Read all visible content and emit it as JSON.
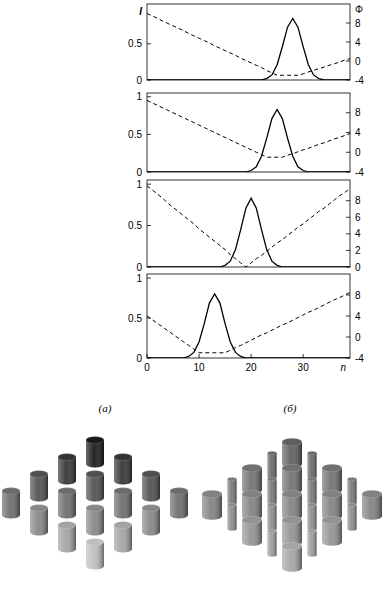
{
  "chart_data": [
    {
      "type": "line",
      "y_label": "I",
      "y2_label": "Φ",
      "x": [
        0,
        1,
        2,
        3,
        4,
        5,
        6,
        7,
        8,
        9,
        10,
        11,
        12,
        13,
        14,
        15,
        16,
        17,
        18,
        19,
        20,
        21,
        22,
        23,
        24,
        25,
        26,
        27,
        28,
        29,
        30,
        31,
        32,
        33,
        34,
        35,
        36,
        37,
        38,
        39
      ],
      "xlim": [
        0,
        39
      ],
      "ylim": [
        0,
        1.05
      ],
      "yticks": [
        0,
        0.5
      ],
      "y2lim": [
        -4,
        12
      ],
      "y2ticks": [
        -4,
        0,
        4,
        8
      ],
      "series": [
        {
          "color": "#000000",
          "line_style": "solid",
          "values": [
            0,
            0,
            0,
            0,
            0,
            0,
            0,
            0,
            0,
            0,
            0,
            0,
            0,
            0,
            0,
            0,
            0,
            0,
            0,
            0,
            0,
            0,
            0,
            0.02,
            0.07,
            0.21,
            0.46,
            0.73,
            0.85,
            0.73,
            0.46,
            0.21,
            0.07,
            0.02,
            0,
            0,
            0,
            0,
            0,
            0
          ]
        },
        {
          "color": "#000000",
          "line_style": "dashed",
          "axis": "y2",
          "values": [
            10,
            9.5,
            9.0,
            8.4,
            7.9,
            7.4,
            6.9,
            6.4,
            5.8,
            5.3,
            4.8,
            4.3,
            3.8,
            3.2,
            2.7,
            2.2,
            1.7,
            1.2,
            0.6,
            0.1,
            -0.4,
            -0.9,
            -1.4,
            -2.0,
            -2.5,
            -3.0,
            -3,
            -3,
            -3,
            -3,
            -2.7,
            -2.3,
            -2.0,
            -1.6,
            -1.3,
            -0.9,
            -0.6,
            -0.2,
            0.2,
            0.5
          ]
        }
      ]
    },
    {
      "type": "line",
      "x": [
        0,
        1,
        2,
        3,
        4,
        5,
        6,
        7,
        8,
        9,
        10,
        11,
        12,
        13,
        14,
        15,
        16,
        17,
        18,
        19,
        20,
        21,
        22,
        23,
        24,
        25,
        26,
        27,
        28,
        29,
        30,
        31,
        32,
        33,
        34,
        35,
        36,
        37,
        38,
        39
      ],
      "xlim": [
        0,
        39
      ],
      "ylim": [
        0,
        1.05
      ],
      "yticks": [
        0,
        0.5,
        1
      ],
      "y2lim": [
        -4,
        12
      ],
      "y2ticks": [
        -4,
        0,
        4,
        8
      ],
      "series": [
        {
          "color": "#000000",
          "line_style": "solid",
          "values": [
            0,
            0,
            0,
            0,
            0,
            0,
            0,
            0,
            0,
            0,
            0,
            0,
            0,
            0,
            0,
            0,
            0,
            0,
            0,
            0,
            0.02,
            0.07,
            0.21,
            0.45,
            0.71,
            0.83,
            0.71,
            0.45,
            0.21,
            0.07,
            0.02,
            0,
            0,
            0,
            0,
            0,
            0,
            0,
            0,
            0
          ]
        },
        {
          "color": "#000000",
          "line_style": "dashed",
          "axis": "y2",
          "values": [
            10.5,
            10,
            9.5,
            9,
            8.5,
            8,
            7.5,
            7,
            6.5,
            6,
            5.5,
            5,
            4.5,
            4,
            3.5,
            3,
            2.5,
            2,
            1.5,
            1,
            0.5,
            0,
            -0.5,
            -1,
            -1,
            -1,
            -1,
            -0.6,
            -0.3,
            0.1,
            0.5,
            0.8,
            1.2,
            1.6,
            1.9,
            2.3,
            2.7,
            3.0,
            3.4,
            3.8
          ]
        }
      ]
    },
    {
      "type": "line",
      "x": [
        0,
        1,
        2,
        3,
        4,
        5,
        6,
        7,
        8,
        9,
        10,
        11,
        12,
        13,
        14,
        15,
        16,
        17,
        18,
        19,
        20,
        21,
        22,
        23,
        24,
        25,
        26,
        27,
        28,
        29,
        30,
        31,
        32,
        33,
        34,
        35,
        36,
        37,
        38,
        39
      ],
      "xlim": [
        0,
        39
      ],
      "ylim": [
        0,
        1.05
      ],
      "yticks": [
        0,
        0.5,
        1
      ],
      "y2lim": [
        0,
        10.5
      ],
      "y2ticks": [
        0,
        2,
        4,
        6,
        8
      ],
      "series": [
        {
          "color": "#000000",
          "line_style": "solid",
          "values": [
            0,
            0,
            0,
            0,
            0,
            0,
            0,
            0,
            0,
            0,
            0,
            0,
            0,
            0,
            0,
            0.02,
            0.07,
            0.21,
            0.45,
            0.71,
            0.83,
            0.71,
            0.45,
            0.21,
            0.07,
            0.02,
            0,
            0,
            0,
            0,
            0,
            0,
            0,
            0,
            0,
            0,
            0,
            0,
            0,
            0
          ]
        },
        {
          "color": "#000000",
          "line_style": "dashed",
          "axis": "y2",
          "values": [
            9.8,
            9.3,
            8.8,
            8.3,
            7.7,
            7.2,
            6.7,
            6.2,
            5.7,
            5.2,
            4.6,
            4.1,
            3.6,
            3.1,
            2.6,
            2.1,
            1.5,
            1.0,
            0.5,
            0,
            0.5,
            1.0,
            1.4,
            1.9,
            2.4,
            2.9,
            3.3,
            3.8,
            4.3,
            4.8,
            5.2,
            5.7,
            6.2,
            6.7,
            7.1,
            7.6,
            8.1,
            8.6,
            9.0,
            9.5
          ]
        }
      ]
    },
    {
      "type": "line",
      "x_label": "n",
      "x": [
        0,
        1,
        2,
        3,
        4,
        5,
        6,
        7,
        8,
        9,
        10,
        11,
        12,
        13,
        14,
        15,
        16,
        17,
        18,
        19,
        20,
        21,
        22,
        23,
        24,
        25,
        26,
        27,
        28,
        29,
        30,
        31,
        32,
        33,
        34,
        35,
        36,
        37,
        38,
        39
      ],
      "xlim": [
        0,
        39
      ],
      "xticks": [
        0,
        10,
        20,
        30
      ],
      "ylim": [
        0,
        1.05
      ],
      "yticks": [
        0,
        0.5,
        1
      ],
      "y2lim": [
        -4,
        12
      ],
      "y2ticks": [
        -4,
        0,
        4,
        8
      ],
      "series": [
        {
          "color": "#000000",
          "line_style": "solid",
          "values": [
            0,
            0,
            0,
            0,
            0,
            0,
            0,
            0,
            0.02,
            0.07,
            0.2,
            0.43,
            0.69,
            0.8,
            0.69,
            0.43,
            0.2,
            0.07,
            0.02,
            0,
            0,
            0,
            0,
            0,
            0,
            0,
            0,
            0,
            0,
            0,
            0,
            0,
            0,
            0,
            0,
            0,
            0,
            0,
            0,
            0
          ]
        },
        {
          "color": "#000000",
          "line_style": "dashed",
          "axis": "y2",
          "values": [
            4,
            3.3,
            2.6,
            1.9,
            1.2,
            0.5,
            -0.2,
            -0.9,
            -1.6,
            -2.3,
            -3.0,
            -3,
            -3,
            -3,
            -3,
            -3,
            -2.5,
            -2.0,
            -1.6,
            -1.1,
            -0.6,
            -0.1,
            0.4,
            0.8,
            1.3,
            1.8,
            2.3,
            2.7,
            3.2,
            3.7,
            4.2,
            4.7,
            5.1,
            5.6,
            6.1,
            6.6,
            7.1,
            7.5,
            8.0,
            8.5
          ]
        }
      ]
    }
  ],
  "illustrations": [
    {
      "label": "(а)"
    },
    {
      "label": "(б)"
    }
  ]
}
